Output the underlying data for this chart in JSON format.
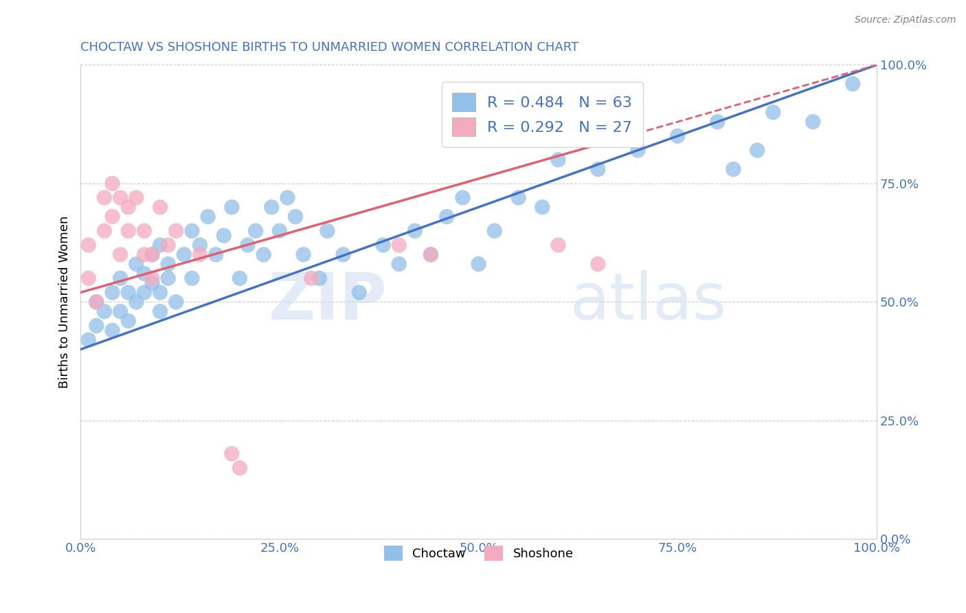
{
  "title": "CHOCTAW VS SHOSHONE BIRTHS TO UNMARRIED WOMEN CORRELATION CHART",
  "source": "Source: ZipAtlas.com",
  "ylabel": "Births to Unmarried Women",
  "watermark_zip": "ZIP",
  "watermark_atlas": "atlas",
  "choctaw_R": 0.484,
  "choctaw_N": 63,
  "shoshone_R": 0.292,
  "shoshone_N": 27,
  "choctaw_color": "#92C0E8",
  "shoshone_color": "#F4AABF",
  "choctaw_line_color": "#4472C4",
  "shoshone_line_color": "#E06070",
  "xlim": [
    0.0,
    1.0
  ],
  "ylim": [
    0.0,
    1.0
  ],
  "xticks": [
    0.0,
    0.25,
    0.5,
    0.75,
    1.0
  ],
  "yticks": [
    0.0,
    0.25,
    0.5,
    0.75,
    1.0
  ],
  "xticklabels": [
    "0.0%",
    "25.0%",
    "50.0%",
    "75.0%",
    "100.0%"
  ],
  "yticklabels": [
    "0.0%",
    "25.0%",
    "50.0%",
    "75.0%",
    "100.0%"
  ],
  "choctaw_line_x0": 0.0,
  "choctaw_line_y0": 0.4,
  "choctaw_line_x1": 1.0,
  "choctaw_line_y1": 1.0,
  "shoshone_line_x0": 0.0,
  "shoshone_line_y0": 0.52,
  "shoshone_line_x1": 1.0,
  "shoshone_line_y1": 1.0,
  "choctaw_x": [
    0.01,
    0.02,
    0.02,
    0.03,
    0.04,
    0.04,
    0.05,
    0.05,
    0.06,
    0.06,
    0.07,
    0.07,
    0.08,
    0.08,
    0.09,
    0.09,
    0.1,
    0.1,
    0.1,
    0.11,
    0.11,
    0.12,
    0.13,
    0.14,
    0.14,
    0.15,
    0.16,
    0.17,
    0.18,
    0.19,
    0.2,
    0.21,
    0.22,
    0.23,
    0.24,
    0.25,
    0.26,
    0.27,
    0.28,
    0.3,
    0.31,
    0.33,
    0.35,
    0.38,
    0.4,
    0.42,
    0.44,
    0.46,
    0.48,
    0.5,
    0.52,
    0.55,
    0.58,
    0.6,
    0.65,
    0.7,
    0.75,
    0.8,
    0.82,
    0.85,
    0.87,
    0.92,
    0.97
  ],
  "choctaw_y": [
    0.42,
    0.45,
    0.5,
    0.48,
    0.44,
    0.52,
    0.48,
    0.55,
    0.46,
    0.52,
    0.5,
    0.58,
    0.52,
    0.56,
    0.54,
    0.6,
    0.48,
    0.52,
    0.62,
    0.55,
    0.58,
    0.5,
    0.6,
    0.55,
    0.65,
    0.62,
    0.68,
    0.6,
    0.64,
    0.7,
    0.55,
    0.62,
    0.65,
    0.6,
    0.7,
    0.65,
    0.72,
    0.68,
    0.6,
    0.55,
    0.65,
    0.6,
    0.52,
    0.62,
    0.58,
    0.65,
    0.6,
    0.68,
    0.72,
    0.58,
    0.65,
    0.72,
    0.7,
    0.8,
    0.78,
    0.82,
    0.85,
    0.88,
    0.78,
    0.82,
    0.9,
    0.88,
    0.96
  ],
  "shoshone_x": [
    0.01,
    0.01,
    0.02,
    0.03,
    0.03,
    0.04,
    0.04,
    0.05,
    0.05,
    0.06,
    0.06,
    0.07,
    0.08,
    0.08,
    0.09,
    0.09,
    0.1,
    0.11,
    0.12,
    0.15,
    0.19,
    0.2,
    0.29,
    0.4,
    0.44,
    0.6,
    0.65
  ],
  "shoshone_y": [
    0.55,
    0.62,
    0.5,
    0.65,
    0.72,
    0.68,
    0.75,
    0.6,
    0.72,
    0.65,
    0.7,
    0.72,
    0.6,
    0.65,
    0.55,
    0.6,
    0.7,
    0.62,
    0.65,
    0.6,
    0.18,
    0.15,
    0.55,
    0.62,
    0.6,
    0.62,
    0.58
  ],
  "background_color": "#FFFFFF",
  "grid_color": "#CCCCCC",
  "tick_color": "#4472C4",
  "title_color": "#4472C4",
  "legend_text_color": "#4472C4"
}
